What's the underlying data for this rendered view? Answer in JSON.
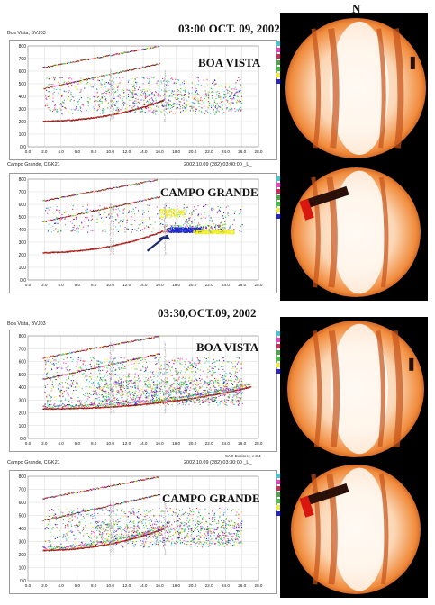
{
  "north_label": "N",
  "sections": [
    {
      "time_title": "03:00 OCT. 09, 2002",
      "panels": [
        {
          "header_left": "Boa Vista, BVJ03",
          "header_right": "",
          "location": "BOA VISTA"
        },
        {
          "header_left": "Campo Grande, CGK21",
          "header_right": "2002.10.09 (282) 03:00:00 _L_",
          "location": "CAMPO GRANDE"
        }
      ]
    },
    {
      "time_title": "03:30,OCT.09, 2002",
      "panels": [
        {
          "header_left": "Boa Vista, BVJ03",
          "header_right": "",
          "location": "BOA VISTA"
        },
        {
          "header_left": "Campo Grande, CGK21",
          "header_right": "2002.10.09 (282) 03:30:00 _L_",
          "location": "CAMPO GRANDE"
        }
      ]
    }
  ],
  "software_note": "SAO Explorer, v 3.4",
  "y_ticks": [
    "800",
    "700",
    "600",
    "500",
    "400",
    "300",
    "200",
    "100",
    "0.0"
  ],
  "x_ticks": [
    "0.0",
    "2.0",
    "4.0",
    "6.0",
    "8.0",
    "10.0",
    "12.0",
    "14.0",
    "16.0",
    "18.0",
    "20.0",
    "22.0",
    "24.0",
    "26.0",
    "28.0"
  ],
  "legend": [
    {
      "label": "",
      "color": "#33ccdd"
    },
    {
      "label": "",
      "color": "#ff33cc"
    },
    {
      "label": "",
      "color": "#dd2255"
    },
    {
      "label": "",
      "color": "#44aa44"
    },
    {
      "label": "",
      "color": "#33cc33"
    },
    {
      "label": "",
      "color": "#eeee22"
    },
    {
      "label": "",
      "color": "#2222dd"
    }
  ],
  "colors": {
    "trace_dark": "#8b1a10",
    "trace_green": "#2e9e3a",
    "trace_blue": "#1c2bd0",
    "arrow": "#1a2a6e",
    "airglow": "#f3a061"
  }
}
